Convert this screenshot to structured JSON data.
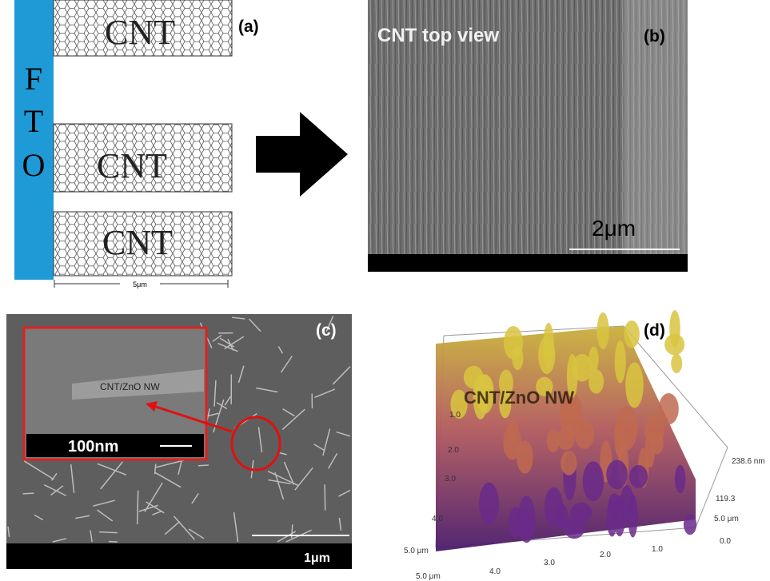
{
  "panel_a": {
    "label": "(a)",
    "substrate_letters": [
      "F",
      "T",
      "O"
    ],
    "tubes": [
      "CNT",
      "CNT",
      "CNT"
    ],
    "scale": "5μm"
  },
  "panel_b": {
    "label": "(b)",
    "title": "CNT top view",
    "scale": "2μm"
  },
  "panel_c": {
    "label": "(c)",
    "inset_text": "CNT/ZnO NW",
    "inset_scale": "100nm",
    "scale": "1μm"
  },
  "panel_d": {
    "label": "(d)",
    "title": "CNT/ZnO NW",
    "z_labels": [
      "238.6 nm",
      "119.3",
      "0.0"
    ],
    "right_axis": [
      "5.0 μm",
      "1.0"
    ],
    "bottom_axis": [
      "2.0",
      "3.0",
      "4.0",
      "5.0 μm",
      "5.0 μm"
    ],
    "left_axis": [
      "1.0",
      "2.0",
      "3.0",
      "4.0"
    ]
  }
}
